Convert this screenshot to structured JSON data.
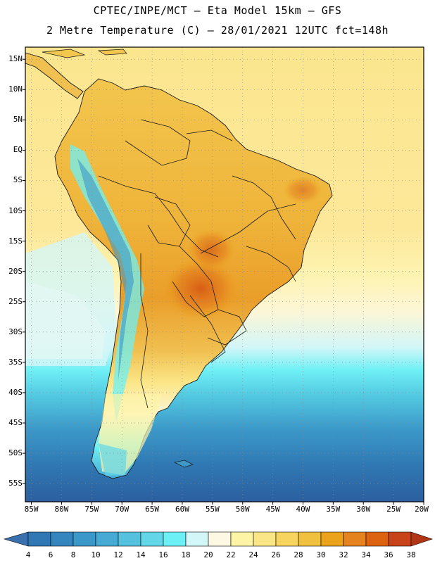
{
  "header": {
    "line1": "CPTEC/INPE/MCT –  Eta Model 15km – GFS",
    "line2": "2 Metre Temperature (C) – 28/01/2021 12UTC fct=148h"
  },
  "map": {
    "lat_ticks": [
      "15N",
      "10N",
      "5N",
      "EQ",
      "5S",
      "10S",
      "15S",
      "20S",
      "25S",
      "30S",
      "35S",
      "40S",
      "45S",
      "50S",
      "55S"
    ],
    "lon_ticks": [
      "85W",
      "80W",
      "75W",
      "70W",
      "65W",
      "60W",
      "55W",
      "50W",
      "45W",
      "40W",
      "35W",
      "30W",
      "25W",
      "20W"
    ],
    "lat_range": [
      -58,
      17
    ],
    "lon_range": [
      -86,
      -20
    ]
  },
  "colorbar": {
    "labels": [
      "4",
      "6",
      "8",
      "10",
      "12",
      "14",
      "16",
      "18",
      "20",
      "22",
      "24",
      "26",
      "28",
      "30",
      "32",
      "34",
      "36",
      "38"
    ],
    "colors": [
      "#3a70ad",
      "#2f78b3",
      "#3586bf",
      "#3c98c9",
      "#47aad4",
      "#56c1de",
      "#63d7e8",
      "#6cf0f5",
      "#d3f6f8",
      "#fdf8e4",
      "#fdf4a6",
      "#fbe687",
      "#f6d45e",
      "#efc13f",
      "#eba31c",
      "#e5841f",
      "#de6311",
      "#c8431a",
      "#b23516"
    ]
  }
}
